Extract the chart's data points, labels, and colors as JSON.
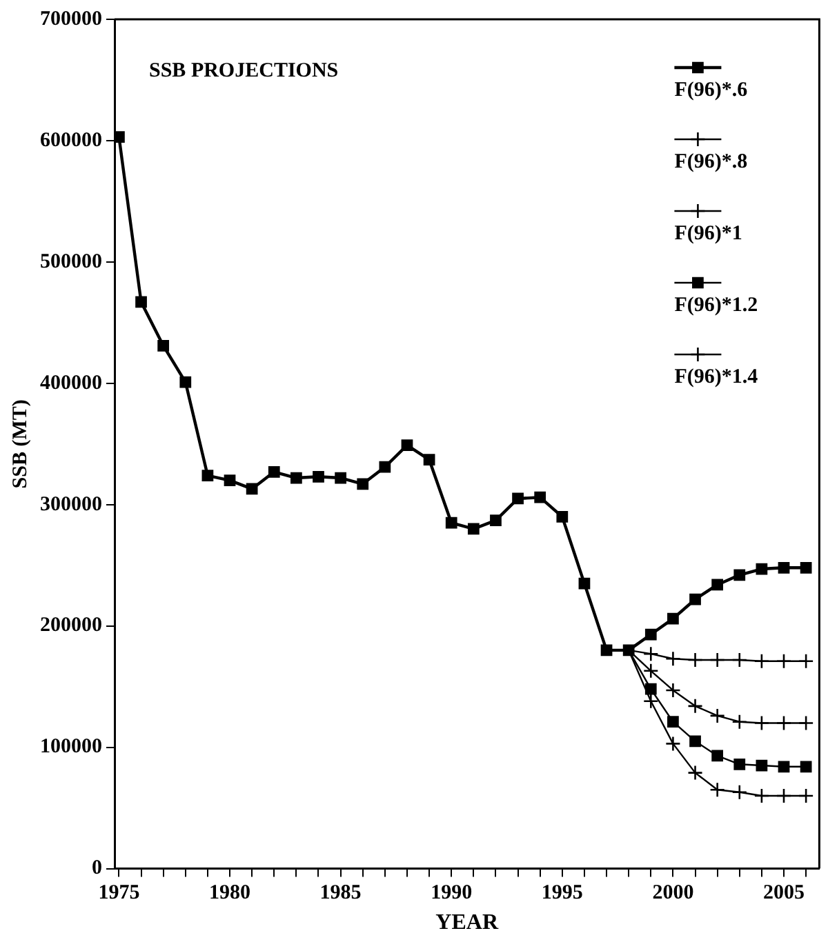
{
  "chart_data": {
    "type": "line",
    "xlabel": "YEAR",
    "ylabel": "SSB (MT)",
    "annotations": [
      "SSB PROJECTIONS"
    ],
    "xlim": [
      1974.8,
      2006.6
    ],
    "ylim": [
      0,
      700000
    ],
    "xticks": [
      1975,
      {
        "value": 1976,
        "label": null
      },
      {
        "value": 1977,
        "label": null
      },
      {
        "value": 1978,
        "label": null
      },
      {
        "value": 1979,
        "label": null
      },
      1980,
      {
        "value": 1981,
        "label": null
      },
      {
        "value": 1982,
        "label": null
      },
      {
        "value": 1983,
        "label": null
      },
      {
        "value": 1984,
        "label": null
      },
      1985,
      {
        "value": 1986,
        "label": null
      },
      {
        "value": 1987,
        "label": null
      },
      {
        "value": 1988,
        "label": null
      },
      {
        "value": 1989,
        "label": null
      },
      1990,
      {
        "value": 1991,
        "label": null
      },
      {
        "value": 1992,
        "label": null
      },
      {
        "value": 1993,
        "label": null
      },
      {
        "value": 1994,
        "label": null
      },
      1995,
      {
        "value": 1996,
        "label": null
      },
      {
        "value": 1997,
        "label": null
      },
      {
        "value": 1998,
        "label": null
      },
      {
        "value": 1999,
        "label": null
      },
      2000,
      {
        "value": 2001,
        "label": null
      },
      {
        "value": 2002,
        "label": null
      },
      {
        "value": 2003,
        "label": null
      },
      {
        "value": 2004,
        "label": null
      },
      2005,
      {
        "value": 2006,
        "label": null
      }
    ],
    "yticks": [
      0,
      100000,
      200000,
      300000,
      400000,
      500000,
      600000,
      700000
    ],
    "grid": false,
    "legend": "top right",
    "line_style": "solid",
    "series": [
      {
        "name": "F(96)*.6",
        "color": "#000000",
        "marker": "square",
        "x": [
          1975,
          1976,
          1977,
          1978,
          1979,
          1980,
          1981,
          1982,
          1983,
          1984,
          1985,
          1986,
          1987,
          1988,
          1989,
          1990,
          1991,
          1992,
          1993,
          1994,
          1995,
          1996,
          1997,
          1998,
          1999,
          2000,
          2001,
          2002,
          2003,
          2004,
          2005,
          2006
        ],
        "values": [
          603000,
          467000,
          431000,
          401000,
          324000,
          320000,
          313000,
          327000,
          322000,
          323000,
          322000,
          317000,
          331000,
          349000,
          337000,
          285000,
          280000,
          287000,
          305000,
          306000,
          290000,
          235000,
          180000,
          180000,
          193000,
          206000,
          222000,
          234000,
          242000,
          247000,
          248000,
          248000
        ]
      },
      {
        "name": "F(96)*.8",
        "color": "#000000",
        "marker": "cross",
        "x": [
          1998,
          1999,
          2000,
          2001,
          2002,
          2003,
          2004,
          2005,
          2006
        ],
        "values": [
          180000,
          177000,
          173000,
          172000,
          172000,
          172000,
          171000,
          171000,
          171000
        ]
      },
      {
        "name": "F(96)*1",
        "color": "#000000",
        "marker": "cross",
        "x": [
          1998,
          1999,
          2000,
          2001,
          2002,
          2003,
          2004,
          2005,
          2006
        ],
        "values": [
          180000,
          163000,
          147000,
          134000,
          126000,
          121000,
          120000,
          120000,
          120000
        ]
      },
      {
        "name": "F(96)*1.2",
        "color": "#000000",
        "marker": "square",
        "x": [
          1998,
          1999,
          2000,
          2001,
          2002,
          2003,
          2004,
          2005,
          2006
        ],
        "values": [
          180000,
          148000,
          121000,
          105000,
          93000,
          86000,
          85000,
          84000,
          84000
        ]
      },
      {
        "name": "F(96)*1.4",
        "color": "#000000",
        "marker": "cross",
        "x": [
          1998,
          1999,
          2000,
          2001,
          2002,
          2003,
          2004,
          2005,
          2006
        ],
        "values": [
          180000,
          138000,
          103000,
          79000,
          65000,
          63000,
          60000,
          60000,
          60000
        ]
      }
    ]
  }
}
